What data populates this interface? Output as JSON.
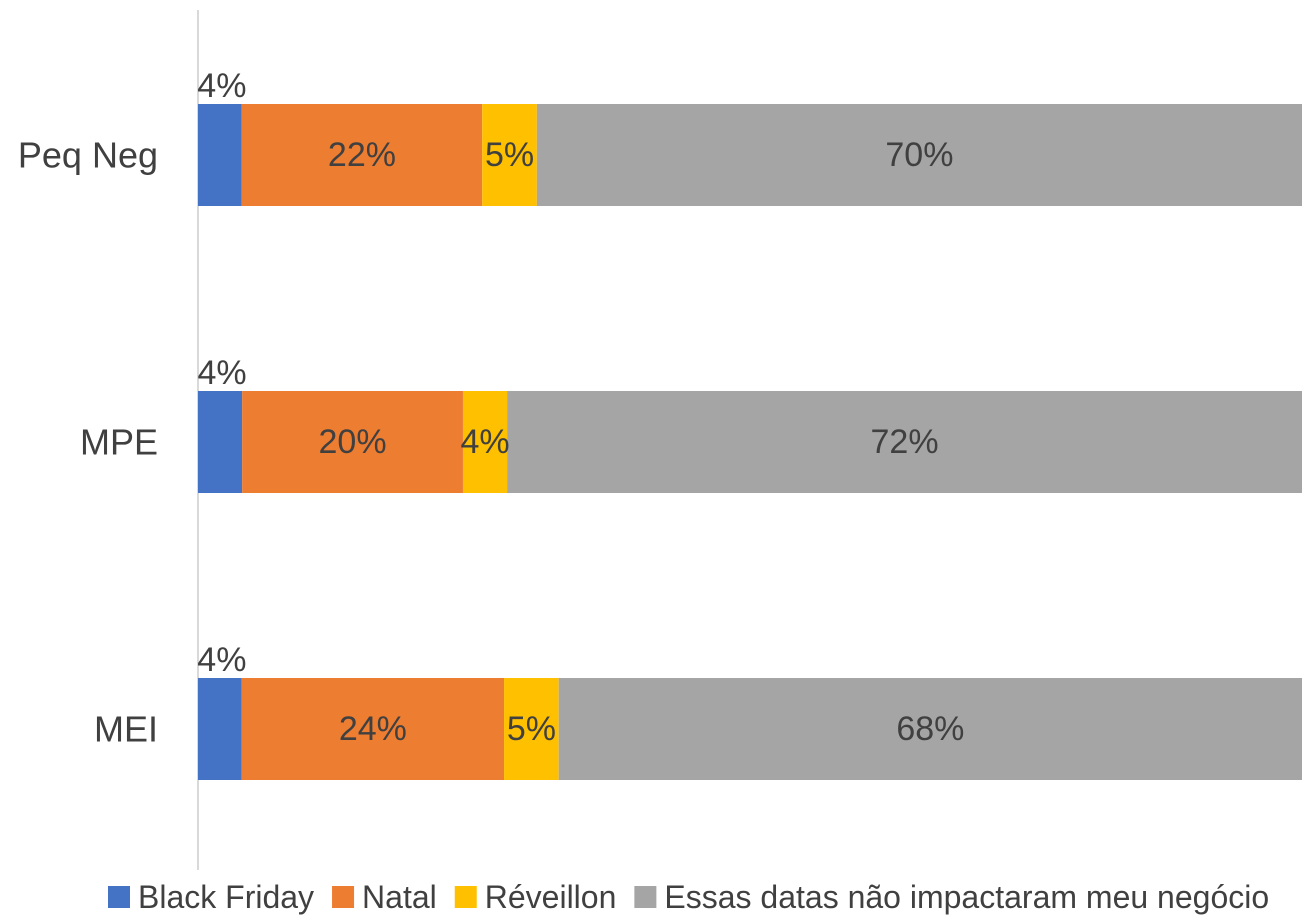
{
  "chart_data": {
    "type": "bar",
    "orientation": "horizontal",
    "stacked": true,
    "categories": [
      "Peq Neg",
      "MPE",
      "MEI"
    ],
    "series": [
      {
        "name": "Black Friday",
        "color": "#4472C4",
        "values": [
          4,
          4,
          4
        ],
        "labels": [
          "4%",
          "4%",
          "4%"
        ]
      },
      {
        "name": "Natal",
        "color": "#ED7D31",
        "values": [
          22,
          20,
          24
        ],
        "labels": [
          "22%",
          "20%",
          "24%"
        ]
      },
      {
        "name": "Réveillon",
        "color": "#FFC000",
        "values": [
          5,
          4,
          5
        ],
        "labels": [
          "5%",
          "4%",
          "5%"
        ]
      },
      {
        "name": "Essas datas não impactaram meu negócio",
        "color": "#A5A5A5",
        "values": [
          70,
          72,
          68
        ],
        "labels": [
          "70%",
          "72%",
          "68%"
        ]
      }
    ],
    "legend_position": "bottom",
    "grid": false,
    "axis_line_color": "#D9D9D9"
  }
}
